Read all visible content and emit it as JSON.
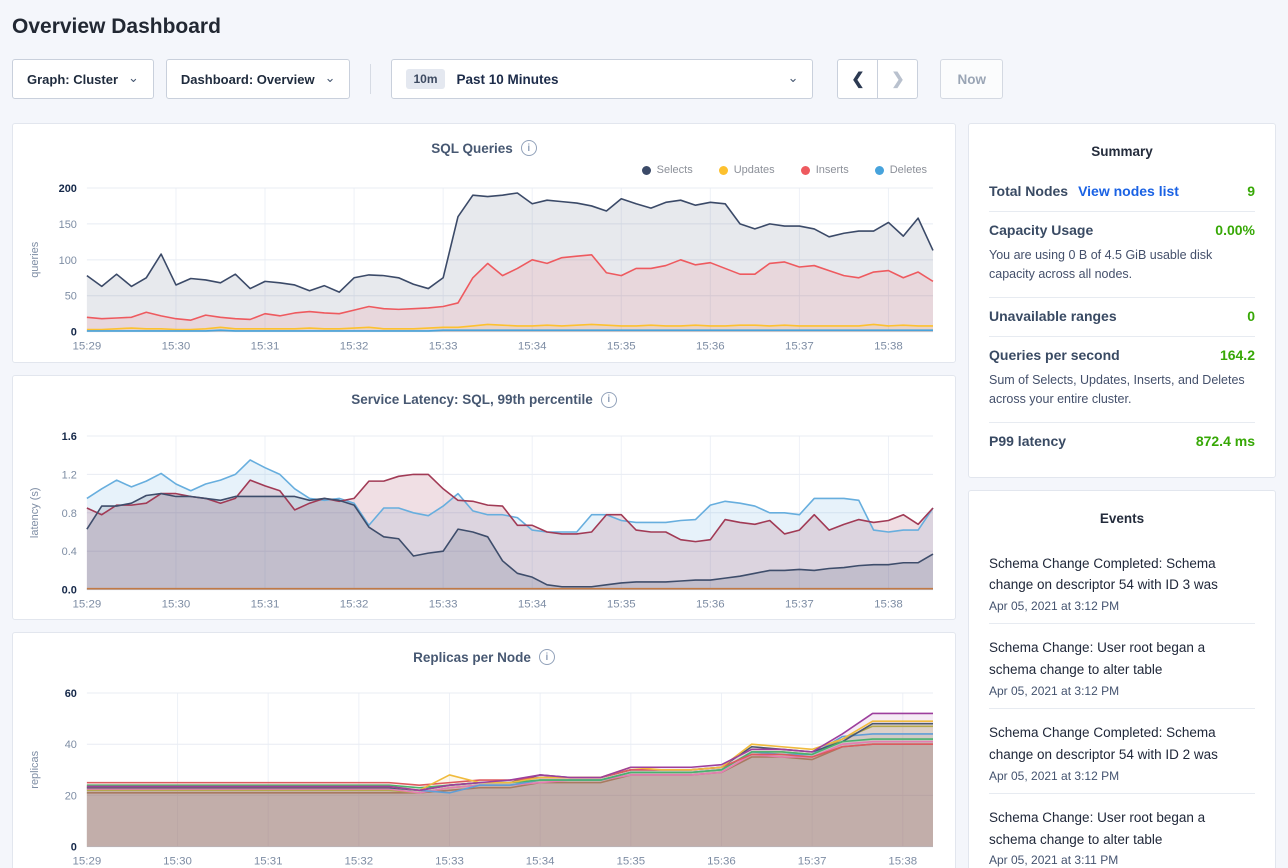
{
  "page": {
    "title": "Overview Dashboard"
  },
  "colors": {
    "accent_green": "#37a806",
    "link_blue": "#1a62e4"
  },
  "icons": {
    "chevron_down": "⌄",
    "arrow_left": "❮",
    "arrow_right": "❯",
    "info": "i"
  },
  "toolbar": {
    "graph_dropdown": "Graph: Cluster",
    "dashboard_dropdown": "Dashboard: Overview",
    "time_badge": "10m",
    "time_label": "Past 10 Minutes",
    "now_button": "Now"
  },
  "summary": {
    "title": "Summary",
    "rows": [
      {
        "label": "Total Nodes",
        "link": "View nodes list",
        "value": "9"
      },
      {
        "label": "Capacity Usage",
        "value": "0.00%",
        "sub": "You are using 0 B of 4.5 GiB usable disk capacity across all nodes."
      },
      {
        "label": "Unavailable ranges",
        "value": "0"
      },
      {
        "label": "Queries per second",
        "value": "164.2",
        "sub": "Sum of Selects, Updates, Inserts, and Deletes across your entire cluster."
      },
      {
        "label": "P99 latency",
        "value": "872.4 ms"
      }
    ]
  },
  "events": {
    "title": "Events",
    "items": [
      {
        "text": "Schema Change Completed: Schema change on descriptor 54 with ID 3 was",
        "date": "Apr 05, 2021 at 3:12 PM"
      },
      {
        "text": "Schema Change: User root began a schema change to alter table",
        "date": "Apr 05, 2021 at 3:12 PM"
      },
      {
        "text": "Schema Change Completed: Schema change on descriptor 54 with ID 2 was",
        "date": "Apr 05, 2021 at 3:12 PM"
      },
      {
        "text": "Schema Change: User root began a schema change to alter table",
        "date": "Apr 05, 2021 at 3:11 PM"
      }
    ]
  },
  "chart_data": {
    "sql": {
      "type": "area",
      "title": "SQL Queries",
      "ylabel": "queries",
      "ymax": 200,
      "h": 180,
      "fill_alpha": 0.12,
      "yticks": [
        {
          "v": 0,
          "l": "0"
        },
        {
          "v": 50,
          "l": "50"
        },
        {
          "v": 100,
          "l": "100"
        },
        {
          "v": 150,
          "l": "150"
        },
        {
          "v": 200,
          "l": "200"
        }
      ],
      "xticks": [
        "15:29",
        "15:30",
        "15:31",
        "15:32",
        "15:33",
        "15:34",
        "15:35",
        "15:36",
        "15:37",
        "15:38"
      ],
      "tick_every": 6,
      "legend": [
        {
          "label": "Selects",
          "color": "#3b4a68"
        },
        {
          "label": "Updates",
          "color": "#fdc12f"
        },
        {
          "label": "Inserts",
          "color": "#ee5a5f"
        },
        {
          "label": "Deletes",
          "color": "#47a3dc"
        }
      ],
      "series": [
        {
          "name": "Selects",
          "color": "#3b4a68",
          "values": [
            78,
            63,
            80,
            63,
            75,
            108,
            65,
            74,
            72,
            68,
            80,
            60,
            70,
            68,
            65,
            57,
            64,
            55,
            75,
            79,
            78,
            75,
            66,
            60,
            75,
            160,
            190,
            188,
            190,
            193,
            178,
            183,
            181,
            179,
            175,
            168,
            185,
            178,
            172,
            180,
            183,
            176,
            180,
            178,
            150,
            143,
            150,
            147,
            147,
            143,
            132,
            137,
            140,
            140,
            152,
            133,
            158,
            113
          ]
        },
        {
          "name": "Inserts",
          "color": "#ee5a5f",
          "values": [
            20,
            18,
            19,
            20,
            27,
            22,
            18,
            16,
            23,
            20,
            18,
            17,
            25,
            22,
            26,
            28,
            26,
            25,
            30,
            35,
            32,
            31,
            32,
            33,
            35,
            40,
            75,
            95,
            78,
            88,
            100,
            95,
            103,
            105,
            107,
            82,
            78,
            88,
            88,
            92,
            100,
            93,
            96,
            88,
            80,
            80,
            95,
            97,
            90,
            92,
            85,
            78,
            75,
            83,
            85,
            75,
            83,
            70
          ]
        },
        {
          "name": "Updates",
          "color": "#fdc12f",
          "values": [
            3,
            3,
            4,
            5,
            4,
            4,
            3,
            3,
            4,
            6,
            4,
            4,
            4,
            4,
            4,
            5,
            4,
            4,
            5,
            6,
            4,
            4,
            4,
            5,
            6,
            6,
            8,
            10,
            9,
            8,
            8,
            9,
            8,
            9,
            10,
            9,
            8,
            8,
            9,
            8,
            8,
            9,
            8,
            8,
            9,
            9,
            8,
            9,
            8,
            8,
            8,
            8,
            8,
            10,
            8,
            9,
            8,
            8
          ]
        },
        {
          "name": "Deletes",
          "color": "#47a3dc",
          "values": [
            1,
            1,
            1,
            1,
            1,
            1,
            1,
            1,
            1,
            2,
            1,
            1,
            1,
            1,
            1,
            1,
            1,
            1,
            1,
            1,
            1,
            1,
            1,
            1,
            2,
            2,
            2,
            2,
            2,
            2,
            2,
            2,
            2,
            2,
            2,
            2,
            2,
            2,
            2,
            2,
            2,
            2,
            2,
            2,
            2,
            2,
            2,
            2,
            2,
            2,
            2,
            2,
            2,
            2,
            2,
            2,
            2,
            2
          ]
        }
      ]
    },
    "latency": {
      "type": "area",
      "title": "Service Latency: SQL, 99th percentile",
      "ylabel": "latency (s)",
      "ymax": 1.6,
      "h": 190,
      "fill_alpha": 0.16,
      "yticks": [
        {
          "v": 0,
          "l": "0.0"
        },
        {
          "v": 0.4,
          "l": "0.4"
        },
        {
          "v": 0.8,
          "l": "0.8"
        },
        {
          "v": 1.2,
          "l": "1.2"
        },
        {
          "v": 1.6,
          "l": "1.6"
        }
      ],
      "xticks": [
        "15:29",
        "15:30",
        "15:31",
        "15:32",
        "15:33",
        "15:34",
        "15:35",
        "15:36",
        "15:37",
        "15:38"
      ],
      "tick_every": 6,
      "legend": [],
      "series": [
        {
          "name": "node-blue",
          "color": "#67aede",
          "values": [
            0.95,
            1.05,
            1.14,
            1.07,
            1.13,
            1.21,
            1.1,
            1.03,
            1.1,
            1.14,
            1.2,
            1.35,
            1.27,
            1.2,
            1.05,
            0.95,
            0.93,
            0.95,
            0.9,
            0.67,
            0.85,
            0.85,
            0.8,
            0.77,
            0.87,
            1.0,
            0.82,
            0.78,
            0.78,
            0.75,
            0.62,
            0.6,
            0.6,
            0.6,
            0.78,
            0.78,
            0.72,
            0.7,
            0.7,
            0.7,
            0.72,
            0.73,
            0.88,
            0.92,
            0.9,
            0.87,
            0.8,
            0.8,
            0.78,
            0.95,
            0.95,
            0.95,
            0.93,
            0.62,
            0.6,
            0.62,
            0.62,
            0.85
          ]
        },
        {
          "name": "node-maroon",
          "color": "#a13a55",
          "values": [
            0.85,
            0.78,
            0.88,
            0.88,
            0.9,
            1.0,
            1.0,
            0.97,
            0.95,
            0.9,
            0.95,
            1.14,
            1.08,
            1.03,
            0.83,
            0.9,
            0.95,
            0.92,
            0.95,
            1.13,
            1.13,
            1.18,
            1.2,
            1.2,
            1.05,
            0.93,
            0.92,
            0.88,
            0.87,
            0.67,
            0.67,
            0.6,
            0.58,
            0.58,
            0.6,
            0.78,
            0.78,
            0.62,
            0.6,
            0.6,
            0.52,
            0.5,
            0.52,
            0.73,
            0.7,
            0.68,
            0.72,
            0.58,
            0.62,
            0.78,
            0.62,
            0.68,
            0.73,
            0.7,
            0.72,
            0.78,
            0.68,
            0.85
          ]
        },
        {
          "name": "node-navy",
          "color": "#3e4d6b",
          "values": [
            0.63,
            0.87,
            0.87,
            0.9,
            0.98,
            1.0,
            0.97,
            0.97,
            0.95,
            0.93,
            0.97,
            0.97,
            0.97,
            0.97,
            0.97,
            0.93,
            0.95,
            0.93,
            0.88,
            0.65,
            0.55,
            0.53,
            0.35,
            0.38,
            0.4,
            0.63,
            0.6,
            0.55,
            0.3,
            0.17,
            0.13,
            0.05,
            0.03,
            0.03,
            0.03,
            0.05,
            0.07,
            0.08,
            0.08,
            0.08,
            0.09,
            0.1,
            0.1,
            0.12,
            0.14,
            0.17,
            0.2,
            0.2,
            0.21,
            0.2,
            0.22,
            0.23,
            0.25,
            0.26,
            0.26,
            0.28,
            0.28,
            0.37
          ]
        },
        {
          "name": "node-orange",
          "color": "#c17a45",
          "values": [
            0.01,
            0.01
          ]
        }
      ]
    },
    "replicas": {
      "type": "area",
      "title": "Replicas per Node",
      "ylabel": "replicas",
      "ymax": 60,
      "h": 190,
      "fill_alpha": 0.1,
      "yticks": [
        {
          "v": 0,
          "l": "0"
        },
        {
          "v": 20,
          "l": "20"
        },
        {
          "v": 40,
          "l": "40"
        },
        {
          "v": 60,
          "l": "60"
        }
      ],
      "xticks": [
        "15:29",
        "15:30",
        "15:31",
        "15:32",
        "15:33",
        "15:34",
        "15:35",
        "15:36",
        "15:37",
        "15:38"
      ],
      "tick_every": 3,
      "legend": [],
      "series": [
        {
          "name": "node-brown",
          "color": "#a87a5f",
          "values": [
            21,
            21,
            21,
            21,
            21,
            21,
            21,
            21,
            21,
            21,
            21,
            21,
            22,
            23,
            23,
            25,
            25,
            25,
            28,
            28,
            28,
            29,
            35,
            35,
            34,
            39,
            40,
            40,
            40
          ]
        },
        {
          "name": "node-olive",
          "color": "#b3a94c",
          "values": [
            22,
            22,
            22,
            22,
            22,
            22,
            22,
            22,
            22,
            22,
            22,
            21,
            23,
            24,
            24,
            26,
            26,
            26,
            29,
            29,
            29,
            30,
            37,
            37,
            36,
            42,
            47,
            47,
            47
          ]
        },
        {
          "name": "node-pink",
          "color": "#e57db2",
          "values": [
            22.5,
            22.5,
            22.5,
            22.5,
            22.5,
            22.5,
            22.5,
            22.5,
            22.5,
            22.5,
            22.5,
            21,
            23,
            24,
            24,
            25,
            26,
            26,
            28,
            28,
            28,
            29,
            36,
            35,
            35,
            40,
            41,
            41,
            41
          ]
        },
        {
          "name": "node-blue",
          "color": "#5f9ed6",
          "values": [
            23,
            23,
            23,
            23,
            23,
            23,
            23,
            23,
            23,
            23,
            23,
            22,
            21,
            24,
            24,
            26,
            26,
            26,
            29,
            29,
            29,
            30,
            37,
            36,
            36,
            43,
            44,
            44,
            44
          ]
        },
        {
          "name": "node-slate",
          "color": "#4a5870",
          "values": [
            23,
            23,
            23,
            23,
            23,
            23,
            23,
            23,
            23,
            23,
            23,
            22,
            24,
            25,
            25,
            28,
            27,
            27,
            30,
            30,
            30,
            31,
            39,
            38,
            37,
            41,
            48,
            48,
            48
          ]
        },
        {
          "name": "node-green",
          "color": "#48b26d",
          "values": [
            24,
            24,
            24,
            24,
            24,
            24,
            24,
            24,
            24,
            24,
            24,
            23,
            24,
            25,
            25,
            26,
            26,
            26,
            29,
            29,
            29,
            30,
            37,
            37,
            36,
            41,
            42,
            42,
            42
          ]
        },
        {
          "name": "node-red",
          "color": "#dd5a5e",
          "values": [
            25,
            25,
            25,
            25,
            25,
            25,
            25,
            25,
            25,
            25,
            25,
            24,
            25,
            26,
            26,
            27,
            27,
            27,
            30,
            30,
            30,
            31,
            36,
            36,
            35,
            39,
            40,
            40,
            40
          ]
        },
        {
          "name": "node-yellow",
          "color": "#f0bb3d",
          "values": [
            23.5,
            23.5,
            23.5,
            23.5,
            23.5,
            23.5,
            23.5,
            23.5,
            23.5,
            23.5,
            23.5,
            22,
            28,
            25,
            25,
            27,
            27,
            27,
            31,
            30,
            30,
            31,
            40,
            39,
            38,
            42,
            49,
            49,
            49
          ]
        },
        {
          "name": "node-purple",
          "color": "#9d3f9d",
          "values": [
            23.5,
            23.5,
            23.5,
            23.5,
            23.5,
            23.5,
            23.5,
            23.5,
            23.5,
            23.5,
            23.5,
            22,
            24,
            25,
            26,
            28,
            27,
            27,
            31,
            31,
            31,
            32,
            38,
            38,
            37,
            44,
            52,
            52,
            52
          ]
        }
      ]
    }
  }
}
